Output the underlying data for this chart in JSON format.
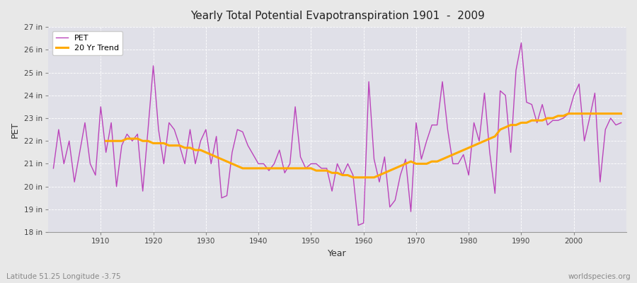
{
  "title": "Yearly Total Potential Evapotranspiration 1901  -  2009",
  "xlabel": "Year",
  "ylabel": "PET",
  "subtitle_left": "Latitude 51.25 Longitude -3.75",
  "subtitle_right": "worldspecies.org",
  "pet_color": "#bb44bb",
  "trend_color": "#ffaa00",
  "bg_color": "#e8e8e8",
  "plot_bg_color": "#e0e0e8",
  "ylim_min": 18,
  "ylim_max": 27,
  "years": [
    1901,
    1902,
    1903,
    1904,
    1905,
    1906,
    1907,
    1908,
    1909,
    1910,
    1911,
    1912,
    1913,
    1914,
    1915,
    1916,
    1917,
    1918,
    1919,
    1920,
    1921,
    1922,
    1923,
    1924,
    1925,
    1926,
    1927,
    1928,
    1929,
    1930,
    1931,
    1932,
    1933,
    1934,
    1935,
    1936,
    1937,
    1938,
    1939,
    1940,
    1941,
    1942,
    1943,
    1944,
    1945,
    1946,
    1947,
    1948,
    1949,
    1950,
    1951,
    1952,
    1953,
    1954,
    1955,
    1956,
    1957,
    1958,
    1959,
    1960,
    1961,
    1962,
    1963,
    1964,
    1965,
    1966,
    1967,
    1968,
    1969,
    1970,
    1971,
    1972,
    1973,
    1974,
    1975,
    1976,
    1977,
    1978,
    1979,
    1980,
    1981,
    1982,
    1983,
    1984,
    1985,
    1986,
    1987,
    1988,
    1989,
    1990,
    1991,
    1992,
    1993,
    1994,
    1995,
    1996,
    1997,
    1998,
    1999,
    2000,
    2001,
    2002,
    2003,
    2004,
    2005,
    2006,
    2007,
    2008,
    2009
  ],
  "pet_values": [
    20.8,
    22.5,
    21.0,
    22.0,
    20.2,
    21.5,
    22.8,
    21.0,
    20.5,
    23.5,
    21.5,
    22.8,
    20.0,
    21.8,
    22.3,
    22.0,
    22.3,
    19.8,
    22.5,
    25.3,
    22.5,
    21.0,
    22.8,
    22.5,
    21.8,
    21.0,
    22.5,
    21.0,
    22.0,
    22.5,
    21.0,
    22.2,
    19.5,
    19.6,
    21.5,
    22.5,
    22.4,
    21.8,
    21.4,
    21.0,
    21.0,
    20.7,
    21.0,
    21.6,
    20.6,
    21.0,
    23.5,
    21.3,
    20.8,
    21.0,
    21.0,
    20.8,
    20.8,
    19.8,
    21.0,
    20.5,
    21.0,
    20.5,
    18.3,
    18.4,
    24.6,
    21.2,
    20.2,
    21.3,
    19.1,
    19.4,
    20.5,
    21.2,
    18.9,
    22.8,
    21.2,
    22.0,
    22.7,
    22.7,
    24.6,
    22.5,
    21.0,
    21.0,
    21.4,
    20.5,
    22.8,
    22.0,
    24.1,
    21.5,
    19.7,
    24.2,
    24.0,
    21.5,
    25.1,
    26.3,
    23.7,
    23.6,
    22.8,
    23.6,
    22.7,
    22.9,
    22.9,
    23.0,
    23.2,
    24.0,
    24.5,
    22.0,
    23.0,
    24.1,
    20.2,
    22.5,
    23.0,
    22.7,
    22.8
  ],
  "trend_values": [
    null,
    null,
    null,
    null,
    null,
    null,
    null,
    null,
    null,
    null,
    22.0,
    22.0,
    22.0,
    22.0,
    22.1,
    22.1,
    22.1,
    22.0,
    22.0,
    21.9,
    21.9,
    21.9,
    21.8,
    21.8,
    21.8,
    21.7,
    21.7,
    21.6,
    21.6,
    21.5,
    21.4,
    21.3,
    21.2,
    21.1,
    21.0,
    20.9,
    20.8,
    20.8,
    20.8,
    20.8,
    20.8,
    20.8,
    20.8,
    20.8,
    20.8,
    20.8,
    20.8,
    20.8,
    20.8,
    20.8,
    20.7,
    20.7,
    20.7,
    20.6,
    20.6,
    20.5,
    20.5,
    20.4,
    20.4,
    20.4,
    20.4,
    20.4,
    20.5,
    20.6,
    20.7,
    20.8,
    20.9,
    21.0,
    21.1,
    21.0,
    21.0,
    21.0,
    21.1,
    21.1,
    21.2,
    21.3,
    21.4,
    21.5,
    21.6,
    21.7,
    21.8,
    21.9,
    22.0,
    22.1,
    22.2,
    22.5,
    22.6,
    22.7,
    22.7,
    22.8,
    22.8,
    22.9,
    22.9,
    22.9,
    23.0,
    23.0,
    23.1,
    23.1,
    23.2,
    23.2,
    23.2,
    23.2,
    23.2,
    23.2,
    23.2,
    23.2,
    23.2,
    23.2,
    23.2
  ]
}
